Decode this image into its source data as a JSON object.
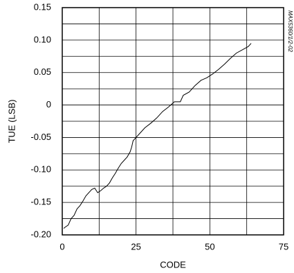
{
  "chart_data": {
    "type": "line",
    "x_label": "CODE",
    "y_label": "TUE (LSB)",
    "figure_id": "MAX5360/1/2-02",
    "xlim": [
      0,
      75
    ],
    "xticks": [
      0,
      25,
      50,
      75
    ],
    "x_minor_ticks": [
      12.5,
      37.5,
      62.5
    ],
    "ylim": [
      -0.2,
      0.15
    ],
    "yticks": [
      {
        "value": -0.2,
        "label": "-0.20"
      },
      -0.15,
      {
        "value": -0.1,
        "label": "-0.10"
      },
      -0.05,
      0,
      0.05,
      {
        "value": 0.1,
        "label": "0.10"
      },
      0.15
    ],
    "y_minor_ticks": [
      -0.175,
      -0.125,
      -0.075,
      -0.025,
      0.025,
      0.075,
      0.125
    ],
    "grid": true,
    "series": [
      {
        "color": "#000000",
        "x": [
          0.5,
          1,
          2,
          3,
          4,
          5,
          6,
          7,
          8,
          9,
          10,
          11,
          12,
          13,
          14,
          15,
          16,
          17,
          18,
          19,
          20,
          21,
          22,
          23,
          23.5,
          24,
          25,
          26,
          28,
          30,
          32,
          34,
          36,
          38,
          40,
          41,
          43,
          45,
          47,
          49,
          51,
          53,
          55,
          57,
          59,
          61,
          63,
          64
        ],
        "values": [
          -0.19,
          -0.188,
          -0.185,
          -0.175,
          -0.17,
          -0.16,
          -0.155,
          -0.148,
          -0.14,
          -0.135,
          -0.13,
          -0.128,
          -0.135,
          -0.132,
          -0.128,
          -0.125,
          -0.12,
          -0.112,
          -0.105,
          -0.097,
          -0.09,
          -0.085,
          -0.08,
          -0.072,
          -0.065,
          -0.055,
          -0.05,
          -0.045,
          -0.035,
          -0.028,
          -0.02,
          -0.01,
          -0.003,
          0.005,
          0.005,
          0.015,
          0.02,
          0.03,
          0.038,
          0.042,
          0.048,
          0.055,
          0.063,
          0.072,
          0.08,
          0.085,
          0.09,
          0.095
        ]
      }
    ]
  }
}
